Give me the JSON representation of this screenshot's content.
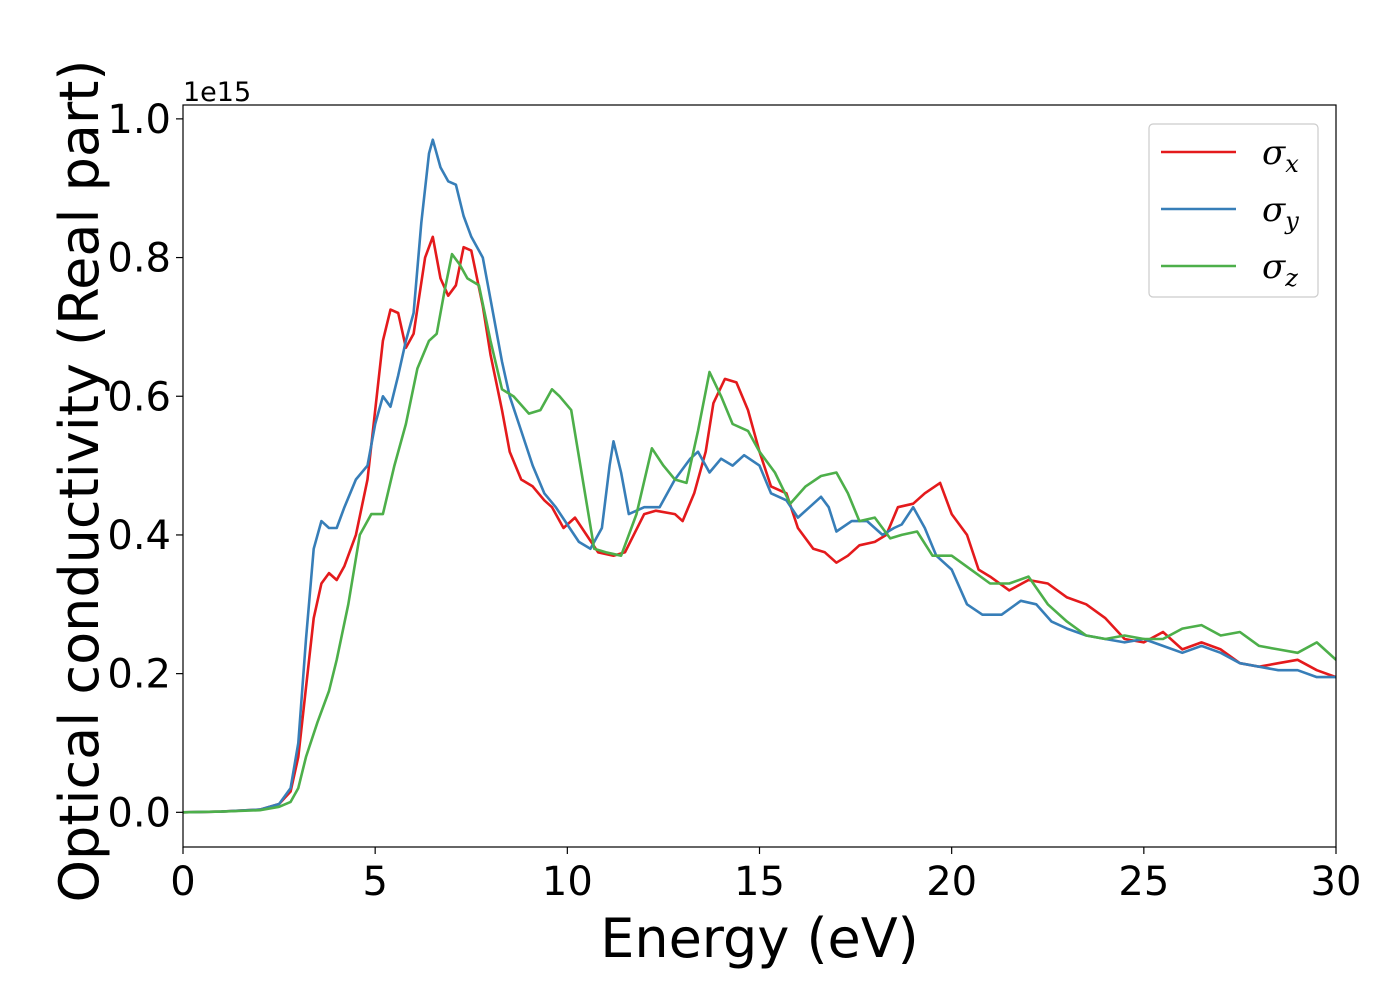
{
  "chart_data": {
    "type": "line",
    "title": "",
    "xlabel": "Energy (eV)",
    "ylabel": "Optical conductivity (Real part)",
    "y_offset_label": "1e15",
    "xlim": [
      0,
      30
    ],
    "ylim": [
      -0.05,
      1.02
    ],
    "xticks": [
      0,
      5,
      10,
      15,
      20,
      25,
      30
    ],
    "xtick_labels": [
      "0",
      "5",
      "10",
      "15",
      "20",
      "25",
      "30"
    ],
    "yticks": [
      0.0,
      0.2,
      0.4,
      0.6,
      0.8,
      1.0
    ],
    "ytick_labels": [
      "0.0",
      "0.2",
      "0.4",
      "0.6",
      "0.8",
      "1.0"
    ],
    "grid": false,
    "legend_placement": "top-right",
    "series": [
      {
        "name": "σ",
        "subscript": "x",
        "color": "#e41a1c",
        "points": [
          [
            0,
            0
          ],
          [
            1,
            0.001
          ],
          [
            2,
            0.004
          ],
          [
            2.5,
            0.012
          ],
          [
            2.8,
            0.03
          ],
          [
            3.0,
            0.08
          ],
          [
            3.2,
            0.18
          ],
          [
            3.4,
            0.28
          ],
          [
            3.6,
            0.33
          ],
          [
            3.8,
            0.345
          ],
          [
            4.0,
            0.335
          ],
          [
            4.2,
            0.355
          ],
          [
            4.5,
            0.4
          ],
          [
            4.8,
            0.48
          ],
          [
            5.0,
            0.58
          ],
          [
            5.2,
            0.68
          ],
          [
            5.4,
            0.725
          ],
          [
            5.6,
            0.72
          ],
          [
            5.8,
            0.67
          ],
          [
            6.0,
            0.69
          ],
          [
            6.3,
            0.8
          ],
          [
            6.5,
            0.83
          ],
          [
            6.7,
            0.77
          ],
          [
            6.9,
            0.745
          ],
          [
            7.1,
            0.76
          ],
          [
            7.3,
            0.815
          ],
          [
            7.5,
            0.81
          ],
          [
            7.8,
            0.73
          ],
          [
            8.0,
            0.66
          ],
          [
            8.3,
            0.58
          ],
          [
            8.5,
            0.52
          ],
          [
            8.8,
            0.48
          ],
          [
            9.1,
            0.47
          ],
          [
            9.4,
            0.45
          ],
          [
            9.6,
            0.44
          ],
          [
            9.9,
            0.41
          ],
          [
            10.2,
            0.425
          ],
          [
            10.5,
            0.4
          ],
          [
            10.8,
            0.375
          ],
          [
            11.2,
            0.37
          ],
          [
            11.5,
            0.375
          ],
          [
            12.0,
            0.43
          ],
          [
            12.3,
            0.435
          ],
          [
            12.8,
            0.43
          ],
          [
            13.0,
            0.42
          ],
          [
            13.3,
            0.46
          ],
          [
            13.6,
            0.52
          ],
          [
            13.8,
            0.59
          ],
          [
            14.1,
            0.625
          ],
          [
            14.4,
            0.62
          ],
          [
            14.7,
            0.58
          ],
          [
            15.0,
            0.52
          ],
          [
            15.3,
            0.47
          ],
          [
            15.7,
            0.46
          ],
          [
            16.0,
            0.41
          ],
          [
            16.4,
            0.38
          ],
          [
            16.7,
            0.375
          ],
          [
            17.0,
            0.36
          ],
          [
            17.3,
            0.37
          ],
          [
            17.6,
            0.385
          ],
          [
            18.0,
            0.39
          ],
          [
            18.3,
            0.4
          ],
          [
            18.6,
            0.44
          ],
          [
            19.0,
            0.445
          ],
          [
            19.3,
            0.46
          ],
          [
            19.7,
            0.475
          ],
          [
            20.0,
            0.43
          ],
          [
            20.4,
            0.4
          ],
          [
            20.7,
            0.35
          ],
          [
            21.0,
            0.34
          ],
          [
            21.5,
            0.32
          ],
          [
            22.0,
            0.335
          ],
          [
            22.5,
            0.33
          ],
          [
            23.0,
            0.31
          ],
          [
            23.5,
            0.3
          ],
          [
            24.0,
            0.28
          ],
          [
            24.5,
            0.25
          ],
          [
            25.0,
            0.245
          ],
          [
            25.5,
            0.26
          ],
          [
            26.0,
            0.235
          ],
          [
            26.5,
            0.245
          ],
          [
            27.0,
            0.235
          ],
          [
            27.5,
            0.215
          ],
          [
            28.0,
            0.21
          ],
          [
            28.5,
            0.215
          ],
          [
            29.0,
            0.22
          ],
          [
            29.5,
            0.205
          ],
          [
            30.0,
            0.195
          ]
        ]
      },
      {
        "name": "σ",
        "subscript": "y",
        "color": "#377eb8",
        "points": [
          [
            0,
            0
          ],
          [
            1,
            0.001
          ],
          [
            2,
            0.004
          ],
          [
            2.5,
            0.012
          ],
          [
            2.8,
            0.035
          ],
          [
            3.0,
            0.1
          ],
          [
            3.2,
            0.25
          ],
          [
            3.4,
            0.38
          ],
          [
            3.6,
            0.42
          ],
          [
            3.8,
            0.41
          ],
          [
            4.0,
            0.41
          ],
          [
            4.2,
            0.44
          ],
          [
            4.5,
            0.48
          ],
          [
            4.8,
            0.5
          ],
          [
            5.0,
            0.56
          ],
          [
            5.2,
            0.6
          ],
          [
            5.4,
            0.585
          ],
          [
            5.6,
            0.63
          ],
          [
            5.8,
            0.68
          ],
          [
            6.0,
            0.72
          ],
          [
            6.2,
            0.85
          ],
          [
            6.4,
            0.95
          ],
          [
            6.5,
            0.97
          ],
          [
            6.7,
            0.93
          ],
          [
            6.9,
            0.91
          ],
          [
            7.1,
            0.905
          ],
          [
            7.3,
            0.86
          ],
          [
            7.5,
            0.83
          ],
          [
            7.8,
            0.8
          ],
          [
            8.0,
            0.74
          ],
          [
            8.3,
            0.65
          ],
          [
            8.5,
            0.6
          ],
          [
            8.8,
            0.55
          ],
          [
            9.1,
            0.5
          ],
          [
            9.4,
            0.46
          ],
          [
            9.7,
            0.44
          ],
          [
            10.0,
            0.415
          ],
          [
            10.3,
            0.39
          ],
          [
            10.6,
            0.38
          ],
          [
            10.9,
            0.41
          ],
          [
            11.1,
            0.5
          ],
          [
            11.2,
            0.535
          ],
          [
            11.4,
            0.49
          ],
          [
            11.6,
            0.43
          ],
          [
            12.0,
            0.44
          ],
          [
            12.4,
            0.44
          ],
          [
            12.8,
            0.48
          ],
          [
            13.2,
            0.51
          ],
          [
            13.4,
            0.52
          ],
          [
            13.7,
            0.49
          ],
          [
            14.0,
            0.51
          ],
          [
            14.3,
            0.5
          ],
          [
            14.6,
            0.515
          ],
          [
            15.0,
            0.5
          ],
          [
            15.3,
            0.46
          ],
          [
            15.7,
            0.45
          ],
          [
            16.0,
            0.425
          ],
          [
            16.3,
            0.44
          ],
          [
            16.6,
            0.455
          ],
          [
            16.8,
            0.44
          ],
          [
            17.0,
            0.405
          ],
          [
            17.4,
            0.42
          ],
          [
            17.8,
            0.42
          ],
          [
            18.2,
            0.4
          ],
          [
            18.5,
            0.41
          ],
          [
            18.7,
            0.415
          ],
          [
            19.0,
            0.44
          ],
          [
            19.3,
            0.41
          ],
          [
            19.6,
            0.37
          ],
          [
            20.0,
            0.35
          ],
          [
            20.4,
            0.3
          ],
          [
            20.8,
            0.285
          ],
          [
            21.3,
            0.285
          ],
          [
            21.8,
            0.305
          ],
          [
            22.2,
            0.3
          ],
          [
            22.6,
            0.275
          ],
          [
            23.0,
            0.265
          ],
          [
            23.5,
            0.255
          ],
          [
            24.0,
            0.25
          ],
          [
            24.5,
            0.245
          ],
          [
            25.0,
            0.25
          ],
          [
            25.5,
            0.24
          ],
          [
            26.0,
            0.23
          ],
          [
            26.5,
            0.24
          ],
          [
            27.0,
            0.23
          ],
          [
            27.5,
            0.215
          ],
          [
            28.0,
            0.21
          ],
          [
            28.5,
            0.205
          ],
          [
            29.0,
            0.205
          ],
          [
            29.5,
            0.195
          ],
          [
            30.0,
            0.195
          ]
        ]
      },
      {
        "name": "σ",
        "subscript": "z",
        "color": "#4daf4a",
        "points": [
          [
            0,
            0
          ],
          [
            1,
            0.001
          ],
          [
            2,
            0.003
          ],
          [
            2.5,
            0.008
          ],
          [
            2.8,
            0.015
          ],
          [
            3.0,
            0.035
          ],
          [
            3.2,
            0.08
          ],
          [
            3.5,
            0.13
          ],
          [
            3.8,
            0.175
          ],
          [
            4.0,
            0.22
          ],
          [
            4.3,
            0.3
          ],
          [
            4.6,
            0.4
          ],
          [
            4.9,
            0.43
          ],
          [
            5.2,
            0.43
          ],
          [
            5.5,
            0.5
          ],
          [
            5.8,
            0.56
          ],
          [
            6.1,
            0.64
          ],
          [
            6.4,
            0.68
          ],
          [
            6.6,
            0.69
          ],
          [
            6.8,
            0.75
          ],
          [
            7.0,
            0.805
          ],
          [
            7.2,
            0.79
          ],
          [
            7.4,
            0.77
          ],
          [
            7.7,
            0.76
          ],
          [
            8.0,
            0.68
          ],
          [
            8.3,
            0.61
          ],
          [
            8.6,
            0.6
          ],
          [
            9.0,
            0.575
          ],
          [
            9.3,
            0.58
          ],
          [
            9.6,
            0.61
          ],
          [
            9.8,
            0.6
          ],
          [
            10.1,
            0.58
          ],
          [
            10.4,
            0.48
          ],
          [
            10.7,
            0.38
          ],
          [
            11.0,
            0.375
          ],
          [
            11.4,
            0.37
          ],
          [
            11.8,
            0.43
          ],
          [
            12.2,
            0.525
          ],
          [
            12.5,
            0.5
          ],
          [
            12.8,
            0.48
          ],
          [
            13.1,
            0.475
          ],
          [
            13.4,
            0.55
          ],
          [
            13.7,
            0.635
          ],
          [
            14.0,
            0.6
          ],
          [
            14.3,
            0.56
          ],
          [
            14.7,
            0.55
          ],
          [
            15.0,
            0.52
          ],
          [
            15.4,
            0.49
          ],
          [
            15.8,
            0.445
          ],
          [
            16.2,
            0.47
          ],
          [
            16.6,
            0.485
          ],
          [
            17.0,
            0.49
          ],
          [
            17.3,
            0.46
          ],
          [
            17.6,
            0.42
          ],
          [
            18.0,
            0.425
          ],
          [
            18.4,
            0.395
          ],
          [
            18.7,
            0.4
          ],
          [
            19.1,
            0.405
          ],
          [
            19.5,
            0.37
          ],
          [
            20.0,
            0.37
          ],
          [
            20.5,
            0.35
          ],
          [
            21.0,
            0.33
          ],
          [
            21.5,
            0.33
          ],
          [
            22.0,
            0.34
          ],
          [
            22.5,
            0.3
          ],
          [
            23.0,
            0.275
          ],
          [
            23.5,
            0.255
          ],
          [
            24.0,
            0.25
          ],
          [
            24.5,
            0.255
          ],
          [
            25.0,
            0.25
          ],
          [
            25.5,
            0.25
          ],
          [
            26.0,
            0.265
          ],
          [
            26.5,
            0.27
          ],
          [
            27.0,
            0.255
          ],
          [
            27.5,
            0.26
          ],
          [
            28.0,
            0.24
          ],
          [
            28.5,
            0.235
          ],
          [
            29.0,
            0.23
          ],
          [
            29.5,
            0.245
          ],
          [
            30.0,
            0.22
          ]
        ]
      }
    ]
  }
}
